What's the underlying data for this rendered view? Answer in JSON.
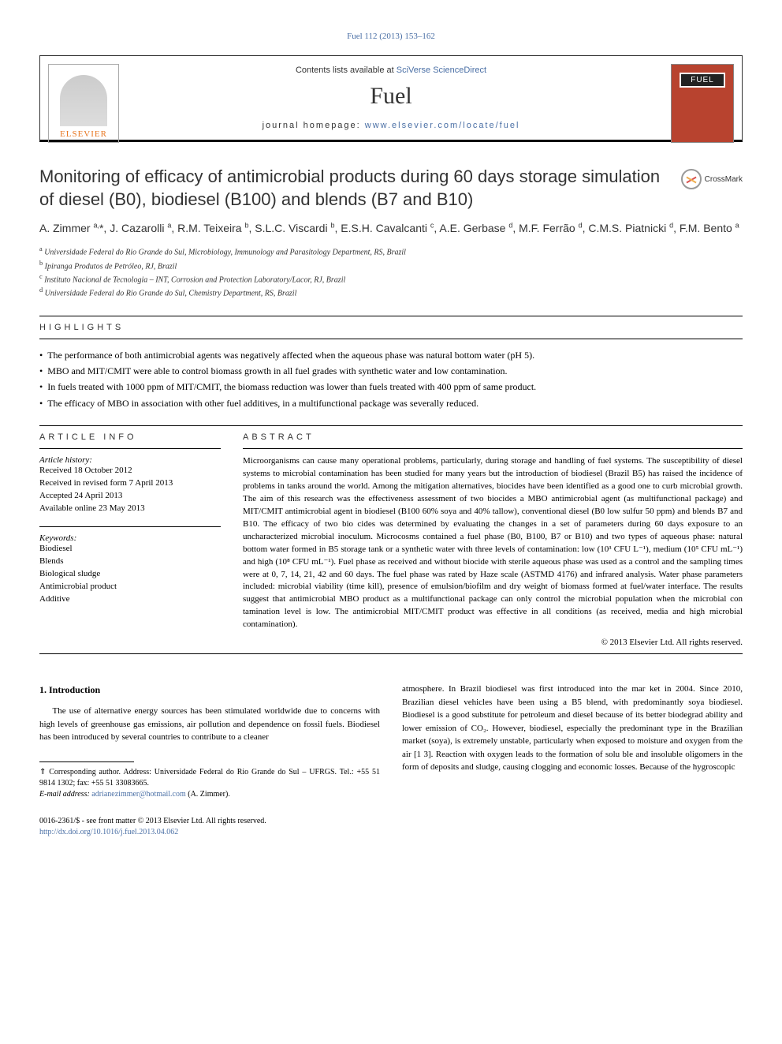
{
  "journal_ref": "Fuel 112 (2013) 153–162",
  "contents_prefix": "Contents lists available at ",
  "contents_link": "SciVerse ScienceDirect",
  "journal_name": "Fuel",
  "homepage_prefix": "journal homepage: ",
  "homepage_link": "www.elsevier.com/locate/fuel",
  "publisher": "ELSEVIER",
  "cover_label": "FUEL",
  "crossmark": "CrossMark",
  "title": "Monitoring of efficacy of antimicrobial products during 60 days storage simulation of diesel (B0), biodiesel (B100) and blends (B7 and B10)",
  "authors_html": "A. Zimmer <sup>a,</sup>*, J. Cazarolli <sup>a</sup>, R.M. Teixeira <sup>b</sup>, S.L.C. Viscardi <sup>b</sup>, E.S.H. Cavalcanti <sup>c</sup>, A.E. Gerbase <sup>d</sup>, M.F. Ferrão <sup>d</sup>, C.M.S. Piatnicki <sup>d</sup>, F.M. Bento <sup>a</sup>",
  "affiliations": [
    {
      "sup": "a",
      "text": "Universidade Federal do Rio Grande do Sul, Microbiology, Immunology and Parasitology Department, RS, Brazil"
    },
    {
      "sup": "b",
      "text": "Ipiranga Produtos de Petróleo, RJ, Brazil"
    },
    {
      "sup": "c",
      "text": "Instituto Nacional de Tecnologia – INT, Corrosion and Protection Laboratory/Lacor, RJ, Brazil"
    },
    {
      "sup": "d",
      "text": "Universidade Federal do Rio Grande do Sul, Chemistry Department, RS, Brazil"
    }
  ],
  "highlights_head": "HIGHLIGHTS",
  "highlights": [
    "The performance of both antimicrobial agents was negatively affected when the aqueous phase was natural bottom water (pH 5).",
    "MBO and MIT/CMIT were able to control biomass growth in all fuel grades with synthetic water and low contamination.",
    "In fuels treated with 1000 ppm of MIT/CMIT, the biomass reduction was lower than fuels treated with 400 ppm of same product.",
    "The efficacy of MBO in association with other fuel additives, in a multifunctional package was severally reduced."
  ],
  "info_head": "ARTICLE INFO",
  "history_label": "Article history:",
  "history": [
    "Received 18 October 2012",
    "Received in revised form 7 April 2013",
    "Accepted 24 April 2013",
    "Available online 23 May 2013"
  ],
  "keywords_label": "Keywords:",
  "keywords": [
    "Biodiesel",
    "Blends",
    "Biological sludge",
    "Antimicrobial product",
    "Additive"
  ],
  "abstract_head": "ABSTRACT",
  "abstract": "Microorganisms can cause many operational problems, particularly, during storage and handling of fuel systems. The susceptibility of diesel systems to microbial contamination has been studied for many years but the introduction of biodiesel (Brazil  B5) has raised the incidence of problems in tanks around the world. Among the mitigation alternatives, biocides have been identified as a good one to curb microbial growth. The aim of this research was the effectiveness assessment of two biocides a MBO antimicrobial agent (as multifunctional package) and MIT/CMIT antimicrobial agent in biodiesel (B100   60% soya and 40% tallow), conventional diesel (B0   low sulfur 50 ppm) and blends B7 and B10. The efficacy of two bio cides was determined by evaluating the changes in a set of parameters during 60 days exposure to an uncharacterized microbial inoculum. Microcosms contained a fuel phase (B0, B100, B7 or B10) and two types of aqueous phase: natural bottom  water formed in B5 storage tank or a synthetic water with three levels of contamination: low (10³ CFU L⁻¹), medium (10⁵ CFU mL⁻¹) and high (10⁸ CFU mL⁻¹). Fuel phase as received and without biocide with sterile aqueous phase was used as a control and the sampling times were at 0, 7, 14, 21, 42 and 60 days. The fuel phase was rated by Haze scale (ASTMD 4176) and infrared analysis. Water phase parameters included: microbial viability (time kill), presence of emulsion/biofilm and dry weight of biomass formed at fuel/water interface. The results suggest that antimicrobial MBO product as a multifunctional package can only control the microbial population when the microbial con tamination level is low. The antimicrobial MIT/CMIT product was effective in all conditions (as received, media and high microbial contamination).",
  "copyright": "© 2013 Elsevier Ltd. All rights reserved.",
  "intro_head": "1. Introduction",
  "intro_left": "The use of alternative energy sources has been stimulated worldwide due to concerns with high levels of greenhouse gas emissions, air pollution and dependence on fossil fuels. Biodiesel has been introduced by several countries to contribute to a cleaner",
  "intro_right": "atmosphere. In Brazil biodiesel was first introduced into the mar ket in 2004. Since 2010, Brazilian diesel vehicles have been using a B5 blend, with predominantly soya biodiesel. Biodiesel is a good substitute for petroleum and diesel because of its better biodegrad ability and lower emission of CO₂. However, biodiesel, especially the predominant type in the Brazilian market (soya), is extremely unstable, particularly when exposed to moisture and oxygen from the air [1  3]. Reaction with oxygen leads to the formation of solu ble and insoluble oligomers in the form of deposits and sludge, causing clogging and economic losses. Because of the hygroscopic",
  "corr_line1": "⇑ Corresponding author. Address: Universidade Federal do Rio Grande do Sul – UFRGS. Tel.: +55 51 9814 1302; fax: +55 51 33083665.",
  "corr_email_label": "E-mail address: ",
  "corr_email": "adrianezimmer@hotmail.com",
  "corr_email_suffix": " (A. Zimmer).",
  "issn_line": "0016-2361/$ - see front matter © 2013 Elsevier Ltd. All rights reserved.",
  "doi": "http://dx.doi.org/10.1016/j.fuel.2013.04.062",
  "colors": {
    "link": "#4a6fa5",
    "publisher_orange": "#e87722",
    "cover_bg": "#b8432f"
  }
}
